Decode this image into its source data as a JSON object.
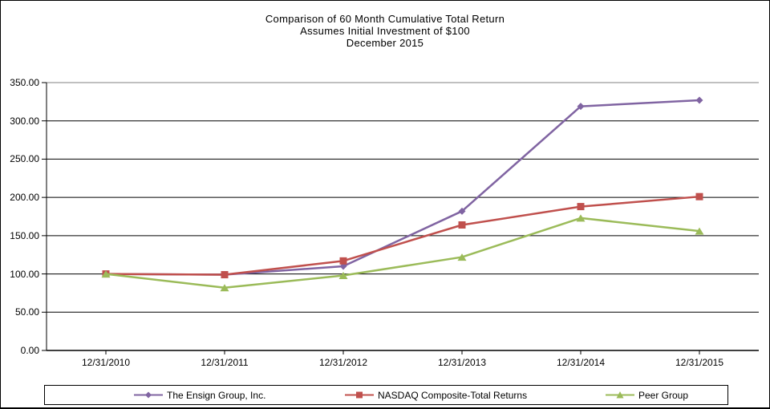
{
  "title": {
    "line1": "Comparison of 60 Month Cumulative Total Return",
    "line2": "Assumes Initial Investment of $100",
    "line3": "December 2015"
  },
  "chart_data": {
    "type": "line",
    "title": "Comparison of 60 Month Cumulative Total Return",
    "subtitle": "Assumes Initial Investment of $100",
    "period_label": "December 2015",
    "categories": [
      "12/31/2010",
      "12/31/2011",
      "12/31/2012",
      "12/31/2013",
      "12/31/2014",
      "12/31/2015"
    ],
    "series": [
      {
        "name": "The Ensign Group, Inc.",
        "marker": "diamond",
        "color": "#8064A2",
        "values": [
          100.0,
          99.0,
          110.0,
          182.0,
          319.0,
          327.0
        ]
      },
      {
        "name": "NASDAQ Composite-Total Returns",
        "marker": "square",
        "color": "#C0504D",
        "values": [
          100.0,
          99.0,
          117.0,
          164.0,
          188.0,
          201.0
        ]
      },
      {
        "name": "Peer Group",
        "marker": "triangle",
        "color": "#9BBB59",
        "values": [
          100.0,
          82.0,
          98.0,
          122.0,
          173.0,
          156.0
        ]
      }
    ],
    "ylim": [
      0,
      350
    ],
    "ytick_step": 50,
    "ytick_labels": [
      "0.00",
      "50.00",
      "100.00",
      "150.00",
      "200.00",
      "250.00",
      "300.00",
      "350.00"
    ],
    "grid": "horizontal",
    "legend_position": "bottom"
  },
  "colors": {
    "axis": "#000000",
    "gridline": "#000000",
    "top_gridline": "#808080",
    "background": "#FFFFFF",
    "frame_border": "#000000"
  }
}
